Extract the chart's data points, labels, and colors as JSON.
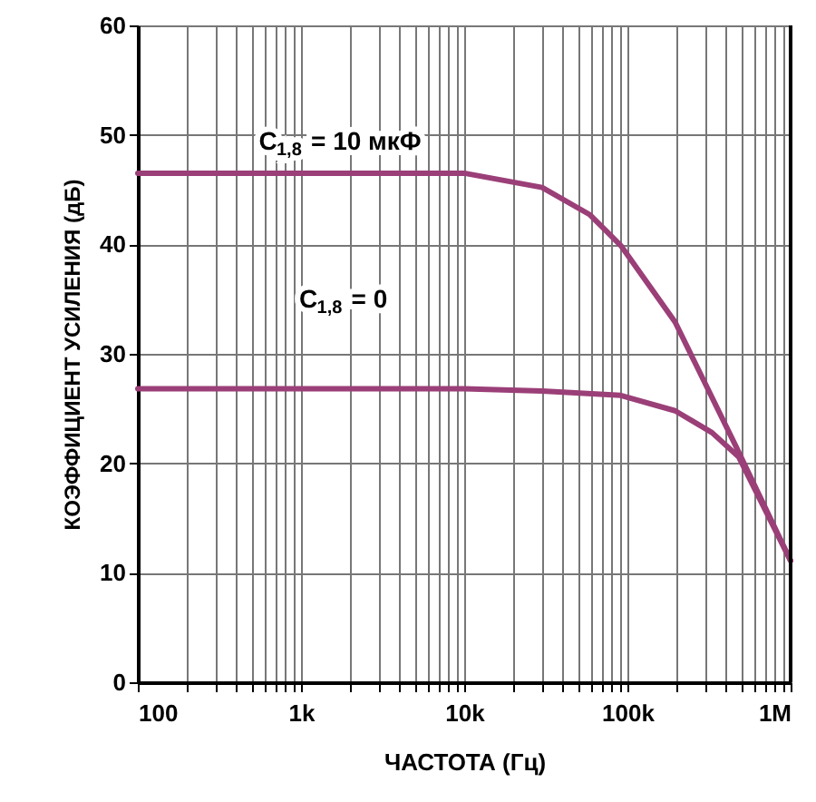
{
  "chart_data": {
    "type": "line",
    "xlabel": "ЧАСТОТА (Гц)",
    "ylabel": "КОЭФФИЦИЕНТ УСИЛЕНИЯ (дБ)",
    "log": "x",
    "series": [
      {
        "name": "C$_{1,8}$ = 10 мкФ",
        "color": "#9b3f78",
        "x": [
          100,
          1000,
          10000,
          30000,
          59000,
          91000,
          196000,
          457000,
          1000000
        ],
        "values": [
          46.5,
          46.5,
          46.5,
          45.2,
          42.7,
          39.9,
          32.9,
          21.7,
          11.1
        ]
      },
      {
        "name": "C$_{1,8}$ = 0",
        "color": "#9b3f78",
        "x": [
          100,
          1000,
          10000,
          30000,
          91000,
          196000,
          330000,
          480000,
          1000000
        ],
        "values": [
          26.8,
          26.8,
          26.8,
          26.6,
          26.2,
          24.8,
          22.8,
          20.6,
          11.1
        ]
      }
    ],
    "xlim": [
      100,
      1000000
    ],
    "xticks": [
      {
        "value": 100,
        "label": "100"
      },
      {
        "value": 200,
        "label": null
      },
      {
        "value": 300,
        "label": null
      },
      {
        "value": 400,
        "label": null
      },
      {
        "value": 500,
        "label": null
      },
      {
        "value": 600,
        "label": null
      },
      {
        "value": 700,
        "label": null
      },
      {
        "value": 800,
        "label": null
      },
      {
        "value": 900,
        "label": null
      },
      {
        "value": 1000,
        "label": "1k"
      },
      {
        "value": 2000,
        "label": null
      },
      {
        "value": 3000,
        "label": null
      },
      {
        "value": 4000,
        "label": null
      },
      {
        "value": 5000,
        "label": null
      },
      {
        "value": 6000,
        "label": null
      },
      {
        "value": 7000,
        "label": null
      },
      {
        "value": 8000,
        "label": null
      },
      {
        "value": 9000,
        "label": null
      },
      {
        "value": 10000,
        "label": "10k"
      },
      {
        "value": 20000,
        "label": null
      },
      {
        "value": 30000,
        "label": null
      },
      {
        "value": 40000,
        "label": null
      },
      {
        "value": 50000,
        "label": null
      },
      {
        "value": 60000,
        "label": null
      },
      {
        "value": 70000,
        "label": null
      },
      {
        "value": 80000,
        "label": null
      },
      {
        "value": 90000,
        "label": null
      },
      {
        "value": 100000,
        "label": "100k"
      },
      {
        "value": 200000,
        "label": null
      },
      {
        "value": 300000,
        "label": null
      },
      {
        "value": 400000,
        "label": null
      },
      {
        "value": 500000,
        "label": null
      },
      {
        "value": 600000,
        "label": null
      },
      {
        "value": 700000,
        "label": null
      },
      {
        "value": 800000,
        "label": null
      },
      {
        "value": 900000,
        "label": null
      },
      {
        "value": 1000000,
        "label": "1M"
      }
    ],
    "ylim": [
      0,
      60
    ],
    "yticks": [
      0,
      10,
      20,
      30,
      40,
      50,
      60
    ],
    "grid": true,
    "marker": "none",
    "line_style": "solid"
  }
}
